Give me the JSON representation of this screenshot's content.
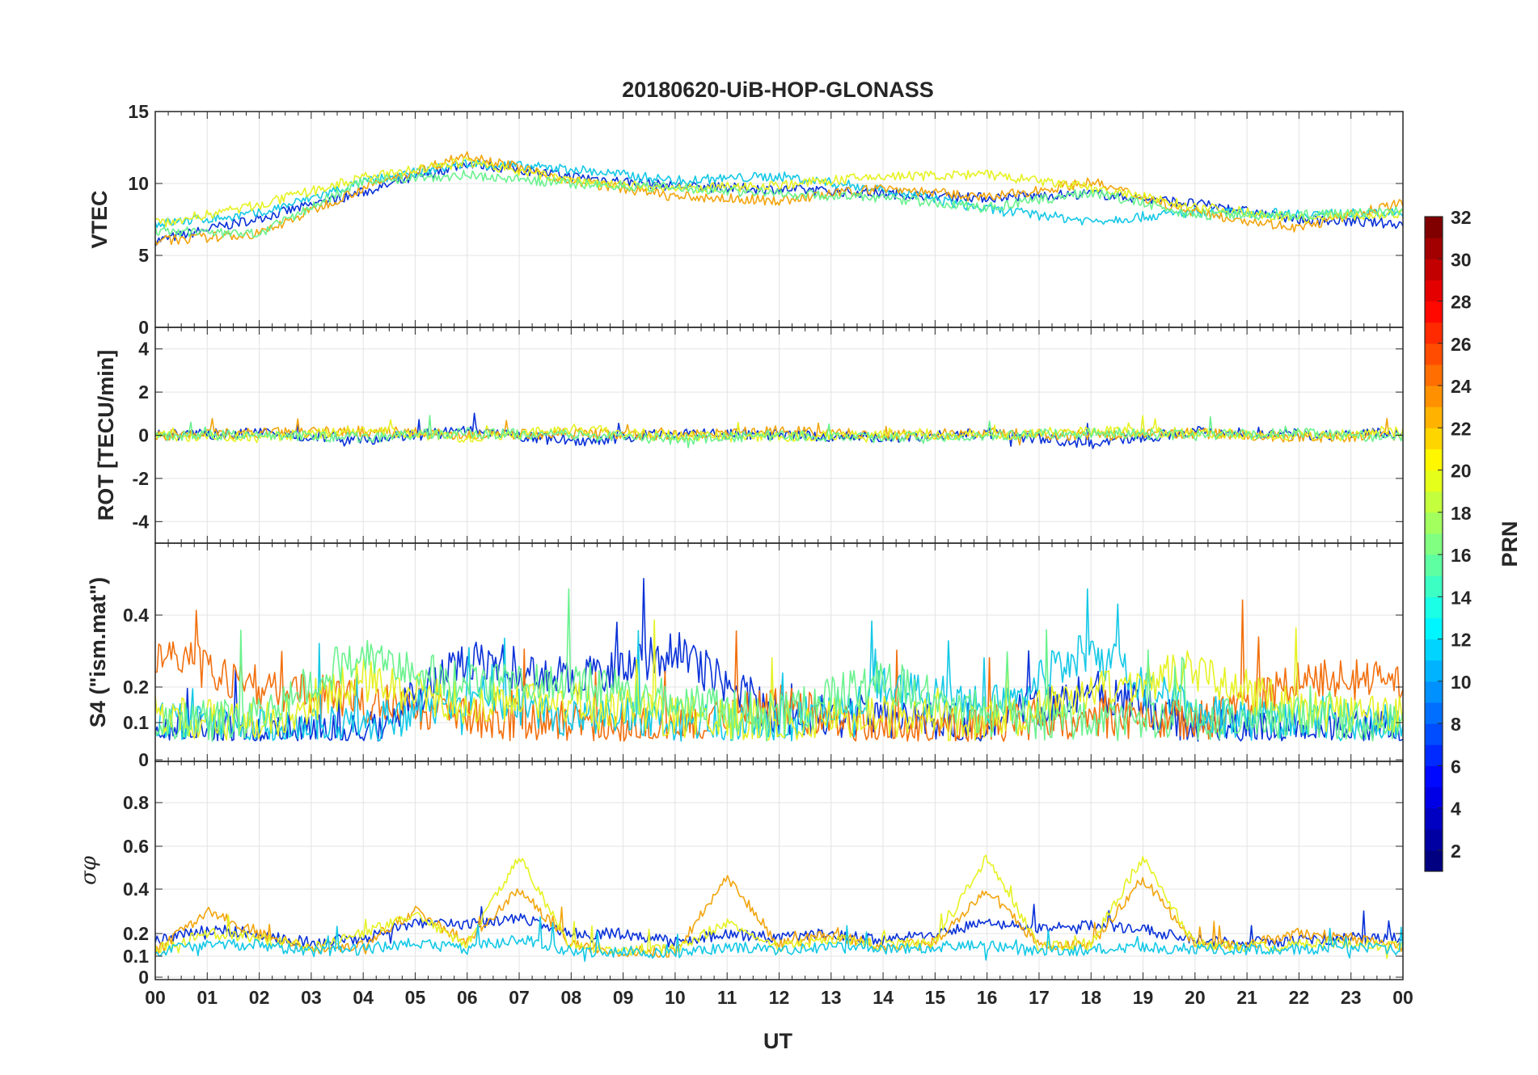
{
  "chart_data": [
    {
      "type": "line",
      "title": "20180620-UiB-HOP-GLONASS",
      "ylabel": "VTEC",
      "ylim": [
        0,
        15
      ],
      "yticks": [
        "0",
        "5",
        "10",
        "15"
      ],
      "x": [
        "00",
        "02",
        "04",
        "06",
        "08",
        "10",
        "12",
        "14",
        "16",
        "18",
        "20",
        "22",
        "00"
      ],
      "series": [
        {
          "color": "#0a32d8",
          "values": [
            6.0,
            7.6,
            9.4,
            11.4,
            10.5,
            9.8,
            9.6,
            9.3,
            9.0,
            9.3,
            8.6,
            7.5,
            7.2
          ]
        },
        {
          "color": "#14c8e6",
          "values": [
            7.2,
            7.9,
            10.1,
            11.4,
            11.0,
            10.2,
            10.5,
            9.6,
            8.2,
            7.4,
            8.0,
            7.9,
            7.9
          ]
        },
        {
          "color": "#f2a50e",
          "values": [
            6.0,
            6.5,
            9.7,
            12.0,
            10.2,
            9.1,
            8.8,
            9.7,
            9.0,
            10.1,
            8.0,
            6.9,
            8.7
          ]
        },
        {
          "color": "#e6f224",
          "values": [
            7.2,
            8.5,
            10.4,
            11.5,
            10.2,
            9.6,
            9.9,
            10.5,
            10.6,
            9.7,
            8.4,
            7.6,
            7.9
          ]
        },
        {
          "color": "#6af28e",
          "values": [
            6.7,
            6.5,
            10.2,
            10.6,
            10.0,
            9.7,
            9.3,
            9.0,
            8.3,
            9.4,
            7.8,
            7.8,
            8.1
          ]
        }
      ]
    },
    {
      "type": "line",
      "ylabel": "ROT [TECU/min]",
      "ylim": [
        -5,
        5
      ],
      "yticks": [
        "-4",
        "-2",
        "0",
        "2",
        "4"
      ],
      "x": [
        "00",
        "02",
        "04",
        "06",
        "08",
        "10",
        "12",
        "14",
        "16",
        "18",
        "20",
        "22",
        "00"
      ],
      "series": [
        {
          "color": "#0a32d8",
          "values": [
            0,
            0.1,
            -0.2,
            0.2,
            -0.3,
            0.1,
            0,
            -0.1,
            0.1,
            -0.4,
            0.2,
            0,
            0.1
          ]
        },
        {
          "color": "#f2a50e",
          "values": [
            0,
            0.1,
            0.2,
            0,
            0.1,
            0,
            0.2,
            0,
            0.1,
            0,
            0.1,
            -0.1,
            0
          ]
        },
        {
          "color": "#e6f224",
          "values": [
            0,
            -0.1,
            0.2,
            -0.1,
            0.3,
            0,
            -0.1,
            0.1,
            0,
            0.2,
            0.1,
            0,
            0.2
          ]
        },
        {
          "color": "#6af28e",
          "values": [
            0,
            0,
            -0.1,
            0.1,
            0,
            -0.2,
            0,
            -0.1,
            0,
            0.1,
            0,
            0.1,
            -0.1
          ]
        }
      ]
    },
    {
      "type": "line",
      "ylabel": "S4 (\"ism.mat\")",
      "ylim": [
        0,
        0.6
      ],
      "yticks": [
        "0",
        "0.1",
        "0.2",
        "0.4"
      ],
      "x": [
        "00",
        "02",
        "04",
        "06",
        "08",
        "10",
        "12",
        "14",
        "16",
        "18",
        "20",
        "22",
        "00"
      ],
      "series": [
        {
          "color": "#0a32d8",
          "values": [
            0.08,
            0.07,
            0.06,
            0.28,
            0.22,
            0.3,
            0.12,
            0.12,
            0.09,
            0.2,
            0.08,
            0.07,
            0.08
          ]
        },
        {
          "color": "#f2700e",
          "values": [
            0.3,
            0.2,
            0.16,
            0.12,
            0.1,
            0.08,
            0.15,
            0.07,
            0.09,
            0.12,
            0.1,
            0.22,
            0.22
          ]
        },
        {
          "color": "#14c8e6",
          "values": [
            0.1,
            0.08,
            0.09,
            0.18,
            0.12,
            0.1,
            0.09,
            0.2,
            0.15,
            0.3,
            0.12,
            0.1,
            0.09
          ]
        },
        {
          "color": "#e6f224",
          "values": [
            0.12,
            0.1,
            0.22,
            0.15,
            0.16,
            0.12,
            0.1,
            0.12,
            0.1,
            0.18,
            0.25,
            0.13,
            0.12
          ]
        },
        {
          "color": "#6af28e",
          "values": [
            0.09,
            0.12,
            0.3,
            0.2,
            0.22,
            0.16,
            0.12,
            0.22,
            0.12,
            0.1,
            0.11,
            0.12,
            0.1
          ]
        }
      ]
    },
    {
      "type": "line",
      "ylabel": "σφ",
      "ylim": [
        0,
        1
      ],
      "yticks": [
        "0",
        "0.1",
        "0.2",
        "0.4",
        "0.6",
        "0.8"
      ],
      "xlabel": "UT",
      "xticks": [
        "00",
        "01",
        "02",
        "03",
        "04",
        "05",
        "06",
        "07",
        "08",
        "09",
        "10",
        "11",
        "12",
        "13",
        "14",
        "15",
        "16",
        "17",
        "18",
        "19",
        "20",
        "21",
        "22",
        "23",
        "00"
      ],
      "x": [
        "00",
        "01",
        "02",
        "03",
        "04",
        "05",
        "06",
        "07",
        "08",
        "09",
        "10",
        "11",
        "12",
        "13",
        "14",
        "15",
        "16",
        "17",
        "18",
        "19",
        "20",
        "21",
        "22",
        "23",
        "00"
      ],
      "series": [
        {
          "color": "#0a32d8",
          "values": [
            0.17,
            0.22,
            0.2,
            0.16,
            0.18,
            0.25,
            0.24,
            0.27,
            0.2,
            0.2,
            0.16,
            0.2,
            0.18,
            0.2,
            0.17,
            0.2,
            0.25,
            0.22,
            0.24,
            0.22,
            0.17,
            0.16,
            0.17,
            0.18,
            0.18
          ]
        },
        {
          "color": "#f2a50e",
          "values": [
            0.12,
            0.3,
            0.2,
            0.13,
            0.15,
            0.3,
            0.16,
            0.4,
            0.15,
            0.12,
            0.12,
            0.45,
            0.15,
            0.2,
            0.14,
            0.16,
            0.4,
            0.15,
            0.15,
            0.45,
            0.15,
            0.15,
            0.2,
            0.18,
            0.14
          ]
        },
        {
          "color": "#e6f224",
          "values": [
            0.13,
            0.2,
            0.18,
            0.14,
            0.2,
            0.28,
            0.15,
            0.55,
            0.14,
            0.13,
            0.13,
            0.25,
            0.14,
            0.18,
            0.15,
            0.16,
            0.55,
            0.14,
            0.15,
            0.55,
            0.15,
            0.14,
            0.15,
            0.16,
            0.14
          ]
        },
        {
          "color": "#14c8e6",
          "values": [
            0.12,
            0.15,
            0.15,
            0.12,
            0.13,
            0.16,
            0.13,
            0.18,
            0.12,
            0.12,
            0.11,
            0.14,
            0.13,
            0.14,
            0.13,
            0.14,
            0.15,
            0.12,
            0.13,
            0.14,
            0.13,
            0.13,
            0.13,
            0.14,
            0.13
          ]
        }
      ]
    }
  ],
  "colorbar": {
    "label": "PRN",
    "ticks": [
      "2",
      "4",
      "6",
      "8",
      "10",
      "12",
      "14",
      "16",
      "18",
      "20",
      "22",
      "24",
      "26",
      "28",
      "30",
      "32"
    ],
    "range": [
      1,
      32
    ],
    "colormap": "jet"
  }
}
